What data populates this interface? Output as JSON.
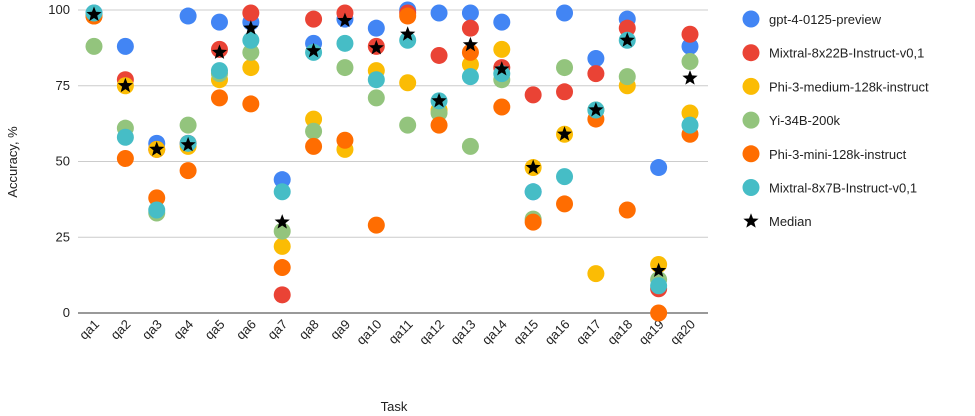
{
  "chart_data": {
    "type": "scatter",
    "title": "",
    "xlabel": "Task",
    "ylabel": "Accuracy, %",
    "ylim": [
      0,
      100
    ],
    "yticks": [
      "0",
      "25",
      "50",
      "75",
      "100"
    ],
    "grid": true,
    "legend_position": "right",
    "categories": [
      "qa1",
      "qa2",
      "qa3",
      "qa4",
      "qa5",
      "qa6",
      "qa7",
      "qa8",
      "qa9",
      "qa10",
      "qa11",
      "qa12",
      "qa13",
      "qa14",
      "qa15",
      "qa16",
      "qa17",
      "qa18",
      "qa19",
      "qa20"
    ],
    "series": [
      {
        "name": "gpt-4-0125-preview",
        "color": "#4285F4",
        "marker": "circle",
        "values": [
          99,
          88,
          56,
          98,
          96,
          96,
          44,
          89,
          97,
          94,
          100,
          99,
          99,
          96,
          40,
          99,
          84,
          97,
          48,
          88
        ]
      },
      {
        "name": "Mixtral-8x22B-Instruct-v0,1",
        "color": "#EA4335",
        "marker": "circle",
        "values": [
          98,
          77,
          54,
          56,
          87,
          99,
          6,
          97,
          99,
          88,
          99,
          85,
          94,
          81,
          72,
          73,
          79,
          94,
          8,
          92
        ]
      },
      {
        "name": "Phi-3-medium-128k-instruct",
        "color": "#FBBC04",
        "marker": "circle",
        "values": [
          98,
          75,
          54,
          55,
          77,
          81,
          22,
          64,
          54,
          80,
          76,
          67,
          82,
          87,
          48,
          59,
          13,
          75,
          16,
          66
        ]
      },
      {
        "name": "Yi-34B-200k",
        "color": "#93C47D",
        "marker": "circle",
        "values": [
          88,
          61,
          33,
          62,
          79,
          86,
          27,
          60,
          81,
          71,
          62,
          66,
          55,
          77,
          31,
          81,
          67,
          78,
          11,
          83
        ]
      },
      {
        "name": "Phi-3-mini-128k-instruct",
        "color": "#FF6D01",
        "marker": "circle",
        "values": [
          98,
          51,
          38,
          47,
          71,
          69,
          15,
          55,
          57,
          29,
          98,
          62,
          86,
          68,
          30,
          36,
          64,
          34,
          0,
          59
        ]
      },
      {
        "name": "Mixtral-8x7B-Instruct-v0,1",
        "color": "#46BDC6",
        "marker": "circle",
        "values": [
          99,
          58,
          34,
          56,
          80,
          90,
          40,
          86,
          89,
          77,
          90,
          70,
          78,
          79,
          40,
          45,
          67,
          90,
          9,
          62
        ]
      },
      {
        "name": "Median",
        "color": "#000000",
        "marker": "star",
        "values": [
          98.5,
          75,
          54,
          55.5,
          86,
          94,
          30,
          86.5,
          96.5,
          87.5,
          92,
          70,
          88.5,
          80.5,
          48,
          59,
          67,
          90,
          14,
          77.5
        ]
      }
    ]
  }
}
